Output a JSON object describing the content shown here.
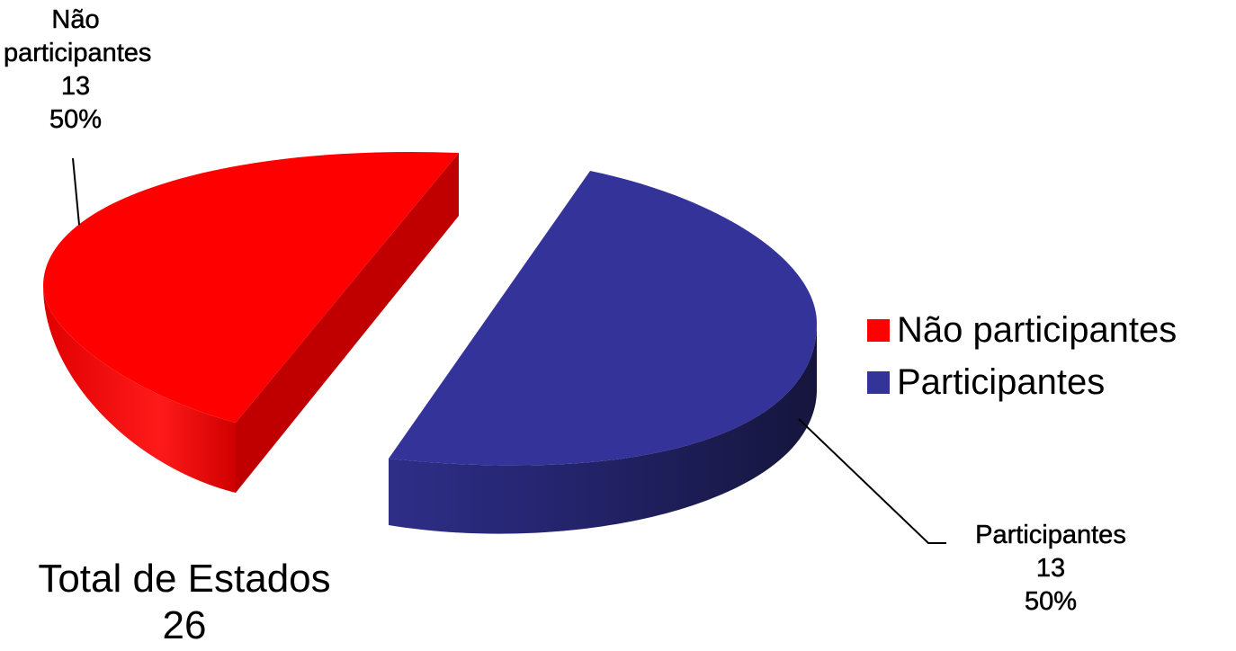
{
  "chart_data": {
    "type": "pie",
    "title": "",
    "style": "3d-exploded",
    "slices": [
      {
        "name": "Não participantes",
        "value": 13,
        "percent": "50%",
        "label_lines": [
          "Não",
          "participantes",
          "13",
          "50%"
        ],
        "color": "#FF0000",
        "side_color": "#C40000"
      },
      {
        "name": "Participantes",
        "value": 13,
        "percent": "50%",
        "label_lines": [
          "Participantes",
          "13",
          "50%"
        ],
        "color": "#333399",
        "side_color": "#1E1E55"
      }
    ],
    "legend": {
      "placement": "right",
      "entries": [
        "Não participantes",
        "Participantes"
      ]
    }
  },
  "total": {
    "label": "Total de Estados",
    "value": "26"
  }
}
